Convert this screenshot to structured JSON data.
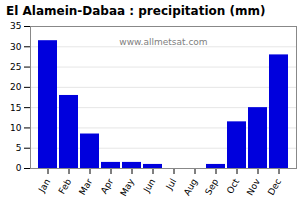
{
  "chart_data": {
    "type": "bar",
    "title": "El Alamein-Dabaa : precipitation (mm)",
    "categories": [
      "Jan",
      "Feb",
      "Mar",
      "Apr",
      "May",
      "Jun",
      "Jul",
      "Aug",
      "Sep",
      "Oct",
      "Nov",
      "Dec"
    ],
    "values": [
      31.5,
      18.0,
      8.5,
      1.5,
      1.5,
      1.0,
      0.0,
      0.0,
      1.0,
      11.5,
      15.0,
      28.0
    ],
    "color": "#0000dd",
    "ylim": [
      0,
      35
    ],
    "yticks": [
      0,
      5,
      10,
      15,
      20,
      25,
      30,
      35
    ],
    "grid": true,
    "annotations": [
      "www.allmetsat.com"
    ]
  }
}
